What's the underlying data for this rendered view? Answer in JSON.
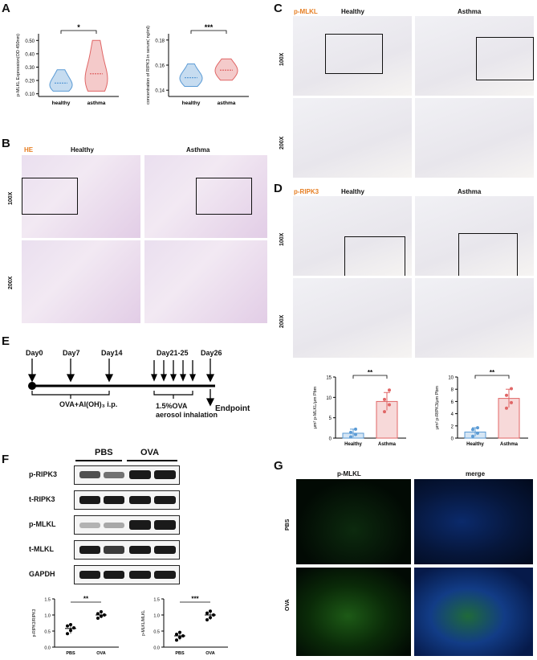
{
  "panels": {
    "A": {
      "letter": "A"
    },
    "B": {
      "letter": "B",
      "stain": "HE",
      "cols": [
        "Healthy",
        "Asthma"
      ],
      "rows": [
        "100X",
        "200X"
      ]
    },
    "C": {
      "letter": "C",
      "stain": "p-MLKL",
      "cols": [
        "Healthy",
        "Asthma"
      ],
      "rows": [
        "100X",
        "200X"
      ]
    },
    "D": {
      "letter": "D",
      "stain": "p-RIPK3",
      "cols": [
        "Healthy",
        "Asthma"
      ],
      "rows": [
        "100X",
        "200X"
      ]
    },
    "E": {
      "letter": "E",
      "days": [
        "Day0",
        "Day7",
        "Day14",
        "Day21-25",
        "Day26"
      ],
      "treat1": "OVA+Al(OH)₃ i.p.",
      "treat2a": "1.5%OVA",
      "treat2b": "aerosol inhalation",
      "endpoint": "Endpoint"
    },
    "F": {
      "letter": "F",
      "groups": [
        "PBS",
        "OVA"
      ],
      "proteins": [
        "p-RIPK3",
        "t-RIPK3",
        "p-MLKL",
        "t-MLKL",
        "GAPDH"
      ]
    },
    "G": {
      "letter": "G",
      "cols": [
        "p-MLKL",
        "merge"
      ],
      "rows": [
        "PBS",
        "OVA"
      ]
    }
  },
  "chart_data": [
    {
      "type": "violin",
      "id": "A1",
      "ylabel": "p-MLKL Expression(OD 450nm)",
      "categories": [
        "healthy",
        "asthma"
      ],
      "yticks": [
        "0.10",
        "0.20",
        "0.30",
        "0.40",
        "0.50"
      ],
      "ylim": [
        0.08,
        0.55
      ],
      "series": [
        {
          "values": [
            0.12,
            0.13,
            0.14,
            0.15,
            0.16,
            0.17,
            0.18,
            0.19,
            0.21,
            0.23,
            0.25,
            0.28
          ],
          "color": "#5b9bd5"
        },
        {
          "values": [
            0.12,
            0.14,
            0.16,
            0.18,
            0.2,
            0.22,
            0.25,
            0.28,
            0.32,
            0.38,
            0.45,
            0.5
          ],
          "color": "#e06666"
        }
      ],
      "significance": "*"
    },
    {
      "type": "violin",
      "id": "A2",
      "ylabel": "concentration of RIPK3 in serum( ng/ml)",
      "categories": [
        "healthy",
        "asthma"
      ],
      "yticks": [
        "0.14",
        "0.16",
        "0.18"
      ],
      "ylim": [
        0.135,
        0.185
      ],
      "series": [
        {
          "values": [
            0.143,
            0.145,
            0.147,
            0.148,
            0.149,
            0.15,
            0.151,
            0.152,
            0.154,
            0.157,
            0.161
          ],
          "color": "#5b9bd5"
        },
        {
          "values": [
            0.148,
            0.15,
            0.152,
            0.153,
            0.155,
            0.156,
            0.157,
            0.158,
            0.16,
            0.162,
            0.165
          ],
          "color": "#e06666"
        }
      ],
      "significance": "***"
    },
    {
      "type": "bar",
      "id": "D1",
      "ylabel": "μm² p-MLKL/μm Pbm",
      "categories": [
        "Healthy",
        "Asthma"
      ],
      "yticks": [
        "0",
        "5",
        "10",
        "15"
      ],
      "ylim": [
        0,
        15
      ],
      "values": [
        1.2,
        9.0
      ],
      "errors": [
        1.0,
        2.2
      ],
      "points": [
        [
          0.3,
          0.9,
          1.4,
          2.2
        ],
        [
          6.5,
          8.2,
          9.5,
          11.8
        ]
      ],
      "colors": [
        "#5b9bd5",
        "#e06666"
      ],
      "significance": "**"
    },
    {
      "type": "bar",
      "id": "D2",
      "ylabel": "μm² p-RIPK3/μm Pbm",
      "categories": [
        "Healthy",
        "Asthma"
      ],
      "yticks": [
        "0",
        "2",
        "4",
        "6",
        "8",
        "10"
      ],
      "ylim": [
        0,
        10
      ],
      "values": [
        1.0,
        6.5
      ],
      "errors": [
        0.7,
        1.5
      ],
      "points": [
        [
          0.3,
          0.8,
          1.4,
          1.7
        ],
        [
          4.9,
          5.8,
          7.0,
          8.1
        ]
      ],
      "colors": [
        "#5b9bd5",
        "#e06666"
      ],
      "significance": "**"
    },
    {
      "type": "scatter",
      "id": "F1",
      "ylabel": "p-RIPK3/RIPK3",
      "categories": [
        "PBS",
        "OVA"
      ],
      "yticks": [
        "0.0",
        "0.5",
        "1.0",
        "1.5"
      ],
      "ylim": [
        0,
        1.5
      ],
      "points": [
        [
          0.42,
          0.52,
          0.6,
          0.66,
          0.7
        ],
        [
          0.9,
          0.96,
          1.0,
          1.04,
          1.1
        ]
      ],
      "means": [
        0.58,
        1.0
      ],
      "significance": "**"
    },
    {
      "type": "scatter",
      "id": "F2",
      "ylabel": "p-MLKL/MLKL",
      "categories": [
        "PBS",
        "OVA"
      ],
      "yticks": [
        "0.0",
        "0.5",
        "1.0",
        "1.5"
      ],
      "ylim": [
        0,
        1.5
      ],
      "points": [
        [
          0.22,
          0.3,
          0.35,
          0.4,
          0.46
        ],
        [
          0.85,
          0.92,
          1.0,
          1.06,
          1.12
        ]
      ],
      "means": [
        0.35,
        1.0
      ],
      "significance": "***"
    }
  ],
  "colors": {
    "healthy": "#5b9bd5",
    "asthma": "#e06666",
    "accent": "#e67e22"
  }
}
